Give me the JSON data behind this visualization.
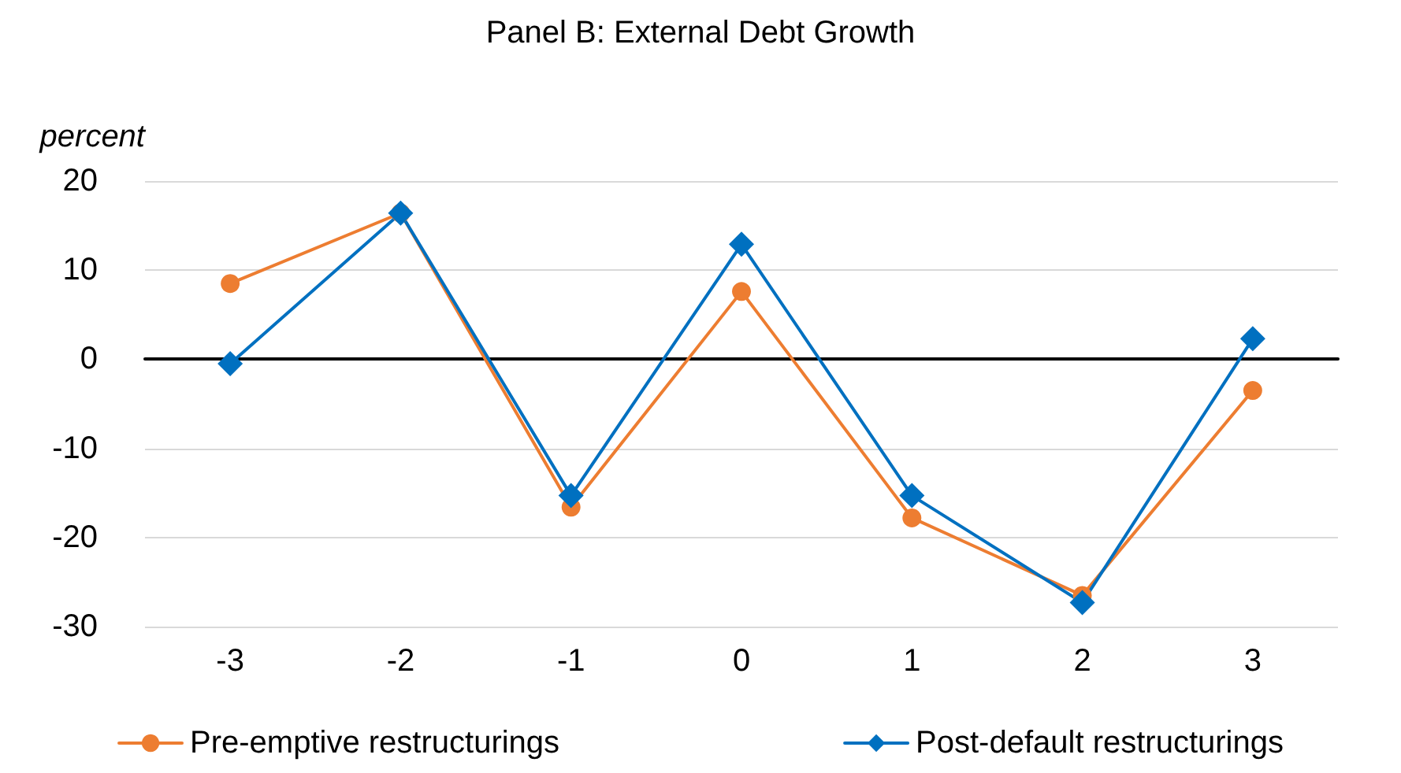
{
  "chart_data": {
    "type": "line",
    "title": "Panel B: External Debt Growth",
    "ylabel": "percent",
    "categories": [
      "-3",
      "-2",
      "-1",
      "0",
      "1",
      "2",
      "3"
    ],
    "series": [
      {
        "name": "Pre-emptive restructurings",
        "color": "#ed7d31",
        "marker": "circle",
        "values": [
          8.5,
          16.4,
          -16.6,
          7.6,
          -17.8,
          -26.5,
          -3.5
        ]
      },
      {
        "name": "Post-default restructurings",
        "color": "#0070c0",
        "marker": "diamond",
        "values": [
          -0.5,
          16.4,
          -15.3,
          12.9,
          -15.3,
          -27.3,
          2.3
        ]
      }
    ],
    "ylim": [
      -30,
      20
    ],
    "yticks": [
      -30,
      -20,
      -10,
      0,
      10,
      20
    ],
    "grid": "y",
    "legend": "bottom",
    "line_style": "solid"
  }
}
